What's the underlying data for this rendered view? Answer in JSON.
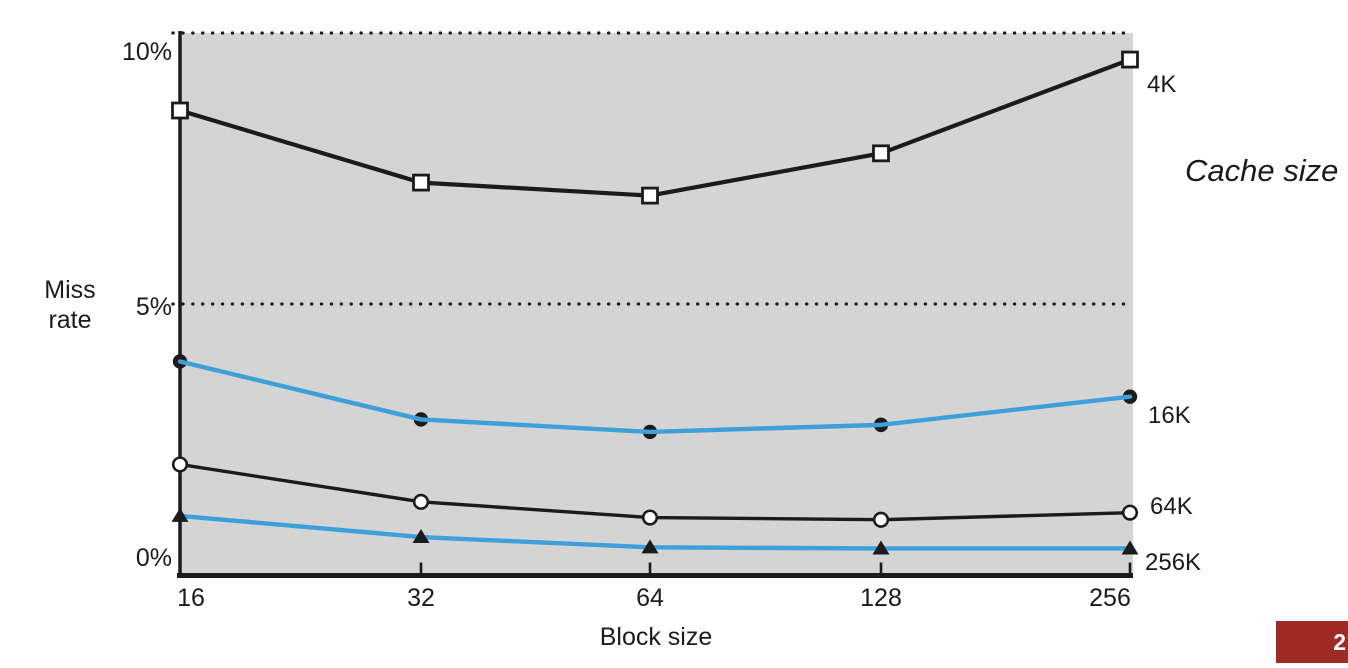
{
  "slide": {
    "page_number": "2",
    "footer_bar_color": "#9e2b26"
  },
  "chart_data": {
    "type": "line",
    "title": "",
    "xlabel": "Block size",
    "ylabel": "Miss rate",
    "ylabel_lines": [
      "Miss",
      "rate"
    ],
    "legend_title": "Cache size",
    "x": [
      16,
      32,
      64,
      128,
      256
    ],
    "x_scale": "categorical-powers-of-2",
    "ylim": [
      0,
      10
    ],
    "yticks": [
      {
        "value": 10,
        "label": "10%"
      },
      {
        "value": 5,
        "label": "5%"
      },
      {
        "value": 0,
        "label": "0%"
      }
    ],
    "gridlines": {
      "style": "dotted",
      "at": [
        10,
        5
      ]
    },
    "plot_bg": "#d4d4d5",
    "axis_color": "#1b1b1b",
    "series": [
      {
        "name": "4K",
        "color": "#1b1b1b",
        "marker": "open-square",
        "values": [
          8.57,
          7.24,
          7.0,
          7.78,
          9.51
        ]
      },
      {
        "name": "16K",
        "color": "#3f9fd8",
        "marker": "filled-circle",
        "values": [
          3.94,
          2.87,
          2.64,
          2.77,
          3.29
        ]
      },
      {
        "name": "64K",
        "color": "#1b1b1b",
        "marker": "open-circle",
        "values": [
          2.04,
          1.35,
          1.06,
          1.02,
          1.15
        ]
      },
      {
        "name": "256K",
        "color": "#3f9fd8",
        "marker": "filled-triangle",
        "values": [
          1.09,
          0.7,
          0.51,
          0.49,
          0.49
        ]
      }
    ]
  }
}
